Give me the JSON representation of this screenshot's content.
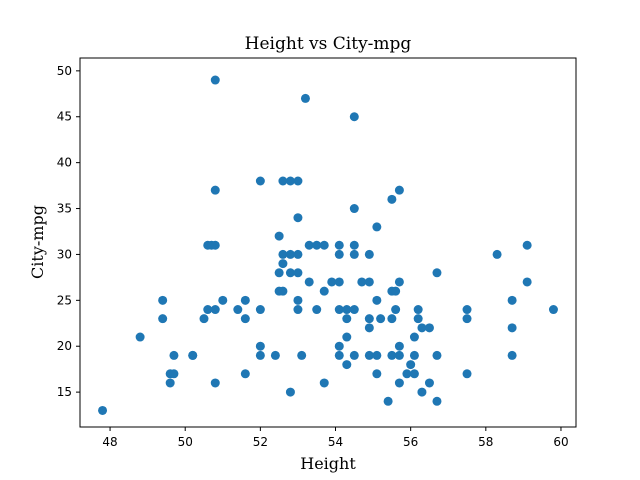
{
  "chart_data": {
    "type": "scatter",
    "title": "Height vs City-mpg",
    "xlabel": "Height",
    "ylabel": "City-mpg",
    "xlim": [
      47.2,
      60.4
    ],
    "ylim": [
      11.2,
      51.4
    ],
    "xticks": [
      48,
      50,
      52,
      54,
      56,
      58,
      60
    ],
    "yticks": [
      15,
      20,
      25,
      30,
      35,
      40,
      45,
      50
    ],
    "grid": false,
    "legend": "none",
    "marker_color": "#1f77b4",
    "series": [
      {
        "points": [
          [
            47.8,
            13
          ],
          [
            48.8,
            21
          ],
          [
            49.4,
            25
          ],
          [
            49.4,
            23
          ],
          [
            49.6,
            17
          ],
          [
            49.6,
            16
          ],
          [
            49.7,
            19
          ],
          [
            49.7,
            17
          ],
          [
            50.2,
            19
          ],
          [
            50.2,
            19
          ],
          [
            50.5,
            23
          ],
          [
            50.6,
            31
          ],
          [
            50.6,
            24
          ],
          [
            50.7,
            31
          ],
          [
            50.8,
            49
          ],
          [
            50.8,
            37
          ],
          [
            50.8,
            31
          ],
          [
            50.8,
            24
          ],
          [
            50.8,
            16
          ],
          [
            51.0,
            25
          ],
          [
            51.4,
            24
          ],
          [
            51.6,
            25
          ],
          [
            51.6,
            23
          ],
          [
            51.6,
            17
          ],
          [
            52.0,
            38
          ],
          [
            52.0,
            24
          ],
          [
            52.0,
            20
          ],
          [
            52.0,
            19
          ],
          [
            52.4,
            19
          ],
          [
            52.5,
            32
          ],
          [
            52.5,
            28
          ],
          [
            52.5,
            26
          ],
          [
            52.6,
            30
          ],
          [
            52.6,
            29
          ],
          [
            52.6,
            26
          ],
          [
            52.6,
            38
          ],
          [
            52.8,
            38
          ],
          [
            52.8,
            30
          ],
          [
            52.8,
            28
          ],
          [
            52.8,
            15
          ],
          [
            53.0,
            38
          ],
          [
            53.0,
            34
          ],
          [
            53.0,
            30
          ],
          [
            53.0,
            28
          ],
          [
            53.0,
            25
          ],
          [
            53.0,
            24
          ],
          [
            53.1,
            19
          ],
          [
            53.2,
            47
          ],
          [
            53.3,
            31
          ],
          [
            53.3,
            27
          ],
          [
            53.5,
            31
          ],
          [
            53.5,
            24
          ],
          [
            53.7,
            31
          ],
          [
            53.7,
            26
          ],
          [
            53.7,
            16
          ],
          [
            53.9,
            27
          ],
          [
            54.1,
            31
          ],
          [
            54.1,
            30
          ],
          [
            54.1,
            27
          ],
          [
            54.1,
            24
          ],
          [
            54.1,
            20
          ],
          [
            54.1,
            19
          ],
          [
            54.3,
            24
          ],
          [
            54.3,
            23
          ],
          [
            54.3,
            21
          ],
          [
            54.3,
            18
          ],
          [
            54.5,
            45
          ],
          [
            54.5,
            35
          ],
          [
            54.5,
            31
          ],
          [
            54.5,
            30
          ],
          [
            54.5,
            24
          ],
          [
            54.5,
            19
          ],
          [
            54.7,
            27
          ],
          [
            54.9,
            30
          ],
          [
            54.9,
            27
          ],
          [
            54.9,
            23
          ],
          [
            54.9,
            22
          ],
          [
            54.9,
            19
          ],
          [
            55.1,
            33
          ],
          [
            55.1,
            25
          ],
          [
            55.1,
            19
          ],
          [
            55.1,
            17
          ],
          [
            55.2,
            23
          ],
          [
            55.4,
            14
          ],
          [
            55.5,
            36
          ],
          [
            55.5,
            26
          ],
          [
            55.5,
            23
          ],
          [
            55.5,
            19
          ],
          [
            55.6,
            26
          ],
          [
            55.6,
            24
          ],
          [
            55.7,
            37
          ],
          [
            55.7,
            27
          ],
          [
            55.7,
            20
          ],
          [
            55.7,
            19
          ],
          [
            55.7,
            16
          ],
          [
            55.9,
            17
          ],
          [
            56.0,
            18
          ],
          [
            56.1,
            21
          ],
          [
            56.1,
            19
          ],
          [
            56.1,
            17
          ],
          [
            56.2,
            24
          ],
          [
            56.2,
            23
          ],
          [
            56.3,
            22
          ],
          [
            56.3,
            15
          ],
          [
            56.5,
            22
          ],
          [
            56.5,
            16
          ],
          [
            56.7,
            28
          ],
          [
            56.7,
            19
          ],
          [
            56.7,
            14
          ],
          [
            57.5,
            24
          ],
          [
            57.5,
            23
          ],
          [
            57.5,
            17
          ],
          [
            58.3,
            30
          ],
          [
            58.7,
            25
          ],
          [
            58.7,
            22
          ],
          [
            58.7,
            19
          ],
          [
            59.1,
            31
          ],
          [
            59.1,
            27
          ],
          [
            59.8,
            24
          ]
        ]
      }
    ]
  }
}
